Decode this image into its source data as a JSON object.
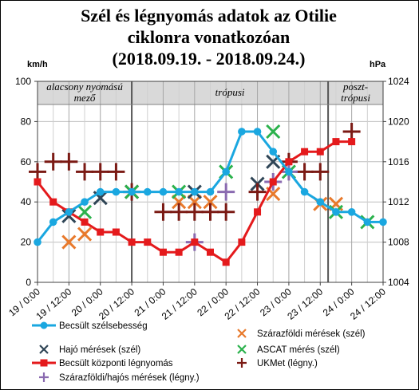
{
  "header": {
    "title_lines": [
      "Szél és légnyomás adatok az Otilie",
      "ciklonra vonatkozóan",
      "(2018.09.19. - 2018.09.24.)"
    ],
    "left_unit": "km/h",
    "right_unit": "hPa"
  },
  "chart_data": {
    "type": "line",
    "title": "Szél és légnyomás adatok az Otilie ciklonra vonatkozóan (2018.09.19. - 2018.09.24.)",
    "xlim": [
      0,
      132
    ],
    "x_ticks": [
      0,
      12,
      24,
      36,
      48,
      60,
      72,
      84,
      96,
      108,
      120,
      132
    ],
    "x_tick_labels": [
      "19 / 0:00",
      "19 / 12:00",
      "20 / 0:00",
      "20 / 12:00",
      "21 / 0:00",
      "21 / 12:00",
      "22 / 0:00",
      "22 / 12:00",
      "23 / 0:00",
      "23 / 12:00",
      "24 / 0:00",
      "24 / 12:00"
    ],
    "ylim_left": [
      0,
      100
    ],
    "y_ticks_left": [
      0,
      20,
      40,
      60,
      80,
      100
    ],
    "ylim_right": [
      1004,
      1024
    ],
    "y_ticks_right": [
      1004,
      1008,
      1012,
      1016,
      1020,
      1024
    ],
    "legend_position": "bottom",
    "grid": true,
    "phases": [
      {
        "label_lines": [
          "alacsony nyomású",
          "mező"
        ],
        "x_start": 0,
        "x_end": 36
      },
      {
        "label_lines": [
          "trópusi"
        ],
        "x_start": 36,
        "x_end": 111
      },
      {
        "label_lines": [
          "poszt-",
          "trópusi"
        ],
        "x_start": 111,
        "x_end": 132
      }
    ],
    "series": [
      {
        "name": "Becsült szélsebesség",
        "axis": "left",
        "marker": "circle",
        "line": true,
        "color": "#1AA7E0",
        "points": [
          [
            0,
            20
          ],
          [
            6,
            30
          ],
          [
            12,
            35
          ],
          [
            18,
            40
          ],
          [
            24,
            45
          ],
          [
            30,
            45
          ],
          [
            36,
            45
          ],
          [
            42,
            45
          ],
          [
            48,
            45
          ],
          [
            54,
            45
          ],
          [
            60,
            45
          ],
          [
            66,
            45
          ],
          [
            72,
            55
          ],
          [
            78,
            75
          ],
          [
            84,
            75
          ],
          [
            90,
            65
          ],
          [
            96,
            55
          ],
          [
            102,
            45
          ],
          [
            108,
            40
          ],
          [
            114,
            35
          ],
          [
            120,
            35
          ],
          [
            126,
            30
          ],
          [
            132,
            30
          ]
        ]
      },
      {
        "name": "Szárazföldi mérések (szél)",
        "axis": "left",
        "marker": "x",
        "line": false,
        "color": "#E8792B",
        "points": [
          [
            12,
            20
          ],
          [
            18,
            24
          ],
          [
            36,
            45
          ],
          [
            54,
            40
          ],
          [
            60,
            40
          ],
          [
            66,
            40
          ],
          [
            90,
            44
          ],
          [
            108,
            39
          ],
          [
            114,
            39
          ]
        ]
      },
      {
        "name": "Hajó mérések (szél)",
        "axis": "left",
        "marker": "x",
        "line": false,
        "color": "#2F4556",
        "points": [
          [
            12,
            33
          ],
          [
            24,
            42
          ],
          [
            36,
            45
          ],
          [
            60,
            45
          ],
          [
            84,
            49
          ],
          [
            90,
            60
          ]
        ]
      },
      {
        "name": "ASCAT mérés (szél)",
        "axis": "left",
        "marker": "x",
        "line": false,
        "color": "#2BB24C",
        "points": [
          [
            18,
            35
          ],
          [
            36,
            45
          ],
          [
            54,
            45
          ],
          [
            72,
            55
          ],
          [
            90,
            75
          ],
          [
            96,
            55
          ],
          [
            114,
            35
          ],
          [
            126,
            30
          ]
        ]
      },
      {
        "name": "Becsült központi légnyomás",
        "axis": "right",
        "marker": "square",
        "line": true,
        "color": "#E41A1C",
        "points": [
          [
            0,
            1014
          ],
          [
            6,
            1012
          ],
          [
            12,
            1011
          ],
          [
            18,
            1010
          ],
          [
            24,
            1009
          ],
          [
            30,
            1009
          ],
          [
            36,
            1008
          ],
          [
            42,
            1008
          ],
          [
            48,
            1007
          ],
          [
            54,
            1007
          ],
          [
            60,
            1008
          ],
          [
            66,
            1007
          ],
          [
            72,
            1006
          ],
          [
            78,
            1008
          ],
          [
            84,
            1011
          ],
          [
            90,
            1014
          ],
          [
            96,
            1016
          ],
          [
            102,
            1017
          ],
          [
            108,
            1017
          ],
          [
            114,
            1018
          ],
          [
            120,
            1018
          ]
        ]
      },
      {
        "name": "UKMet (légny.)",
        "axis": "right",
        "marker": "plus",
        "line": false,
        "color": "#7B1A14",
        "points": [
          [
            0,
            1015
          ],
          [
            6,
            1016
          ],
          [
            12,
            1016
          ],
          [
            18,
            1015
          ],
          [
            24,
            1015
          ],
          [
            30,
            1015
          ],
          [
            36,
            1013
          ],
          [
            48,
            1011
          ],
          [
            54,
            1011
          ],
          [
            60,
            1011
          ],
          [
            66,
            1011
          ],
          [
            72,
            1011
          ],
          [
            84,
            1013
          ],
          [
            96,
            1016
          ],
          [
            102,
            1015
          ],
          [
            108,
            1015
          ],
          [
            120,
            1019
          ]
        ]
      },
      {
        "name": "Szárazföldi/hajós mérések (légny.)",
        "axis": "right",
        "marker": "plus",
        "line": false,
        "color": "#8A6AB0",
        "points": [
          [
            60,
            1008
          ],
          [
            72,
            1013
          ],
          [
            90,
            1014
          ],
          [
            96,
            1015
          ]
        ]
      }
    ]
  }
}
